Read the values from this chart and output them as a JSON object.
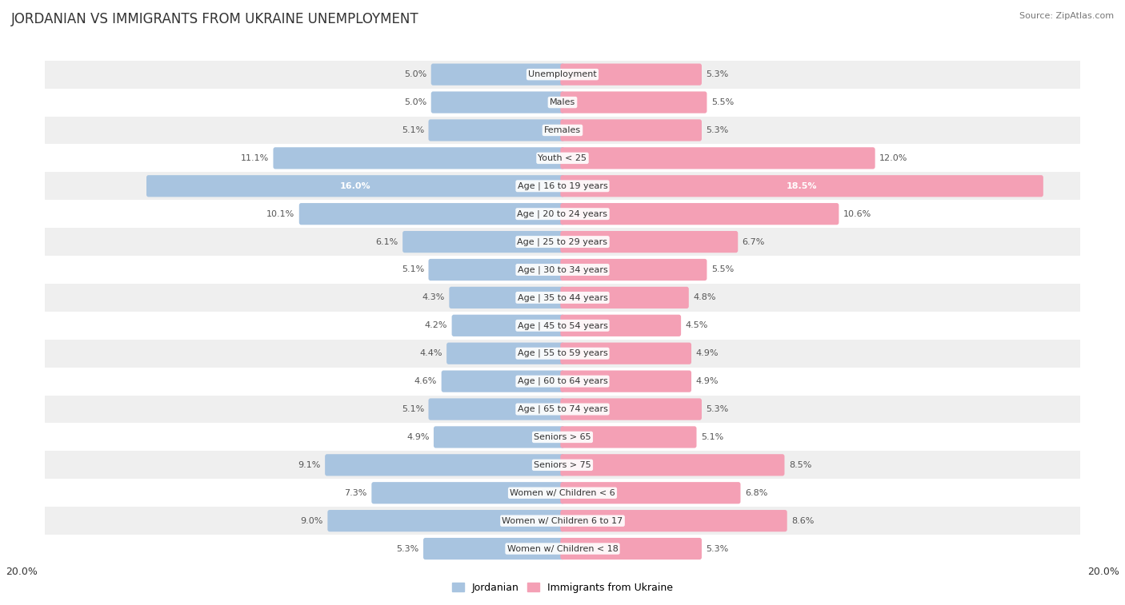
{
  "title": "JORDANIAN VS IMMIGRANTS FROM UKRAINE UNEMPLOYMENT",
  "source": "Source: ZipAtlas.com",
  "categories": [
    "Unemployment",
    "Males",
    "Females",
    "Youth < 25",
    "Age | 16 to 19 years",
    "Age | 20 to 24 years",
    "Age | 25 to 29 years",
    "Age | 30 to 34 years",
    "Age | 35 to 44 years",
    "Age | 45 to 54 years",
    "Age | 55 to 59 years",
    "Age | 60 to 64 years",
    "Age | 65 to 74 years",
    "Seniors > 65",
    "Seniors > 75",
    "Women w/ Children < 6",
    "Women w/ Children 6 to 17",
    "Women w/ Children < 18"
  ],
  "jordanian": [
    5.0,
    5.0,
    5.1,
    11.1,
    16.0,
    10.1,
    6.1,
    5.1,
    4.3,
    4.2,
    4.4,
    4.6,
    5.1,
    4.9,
    9.1,
    7.3,
    9.0,
    5.3
  ],
  "ukraine": [
    5.3,
    5.5,
    5.3,
    12.0,
    18.5,
    10.6,
    6.7,
    5.5,
    4.8,
    4.5,
    4.9,
    4.9,
    5.3,
    5.1,
    8.5,
    6.8,
    8.6,
    5.3
  ],
  "jordanian_color": "#a8c4e0",
  "ukraine_color": "#f4a0b5",
  "label_color_dark": "#555555",
  "label_color_light": "#ffffff",
  "highlight_threshold": 14.0,
  "bar_height": 0.62,
  "row_bg_color_odd": "#efefef",
  "row_bg_color_even": "#ffffff",
  "max_value": 20.0,
  "axis_label_left": "20.0%",
  "axis_label_right": "20.0%",
  "legend_jordanian": "Jordanian",
  "legend_ukraine": "Immigrants from Ukraine",
  "background_color": "#ffffff",
  "title_fontsize": 12,
  "source_fontsize": 8,
  "label_fontsize": 8,
  "category_fontsize": 8
}
